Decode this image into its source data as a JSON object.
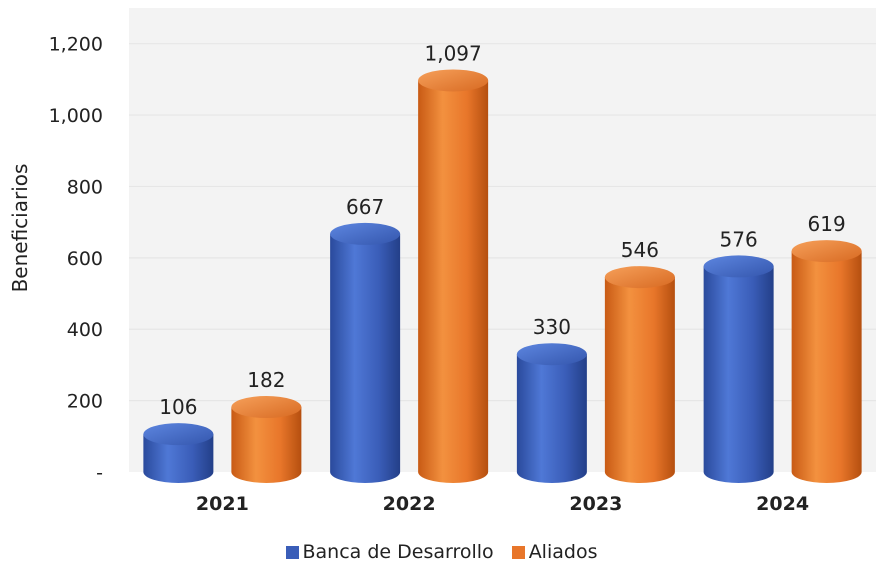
{
  "colors": {
    "blue": "#3a5db8",
    "orange": "#e8762a",
    "grid": "#e6e6e6"
  },
  "chart_data": {
    "type": "bar",
    "ylabel": "Beneficiarios",
    "xlabel": "",
    "categories": [
      "2021",
      "2022",
      "2023",
      "2024"
    ],
    "series": [
      {
        "name": "Banca de Desarrollo",
        "values": [
          106,
          667,
          330,
          576
        ],
        "labels": [
          "106",
          "667",
          "330",
          "576"
        ]
      },
      {
        "name": "Aliados",
        "values": [
          182,
          1097,
          546,
          619
        ],
        "labels": [
          "182",
          "1,097",
          "546",
          "619"
        ]
      }
    ],
    "ylim": [
      0,
      1300
    ],
    "yticks": [
      0,
      200,
      400,
      600,
      800,
      1000,
      1200
    ],
    "ytick_labels": [
      "-",
      "200",
      "400",
      "600",
      "800",
      "1,000",
      "1,200"
    ],
    "grid": true,
    "legend_position": "bottom"
  }
}
